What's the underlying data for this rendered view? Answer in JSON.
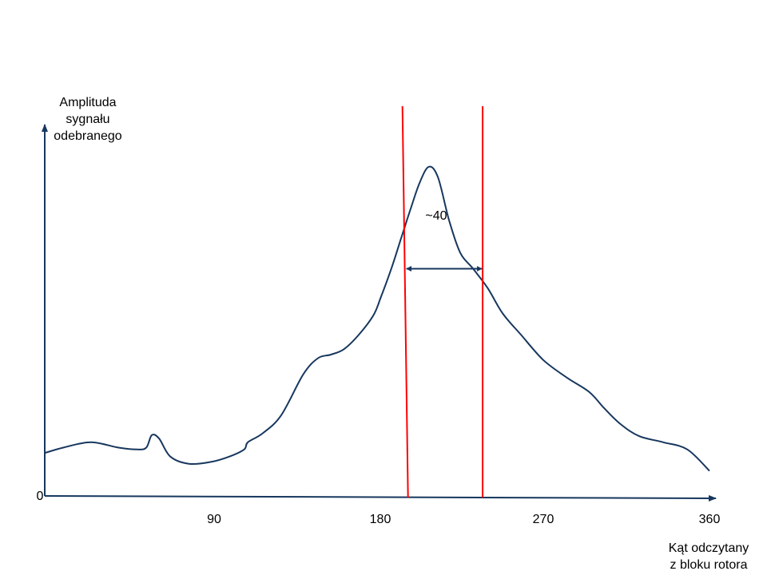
{
  "chart_data": {
    "type": "line",
    "xlabel": [
      "Kąt odczytany",
      "z bloku rotora"
    ],
    "ylabel": [
      "Amplituda",
      "sygnału",
      "odebranego"
    ],
    "y_origin_label": "0",
    "xlim": [
      0,
      360
    ],
    "ylim": [
      0,
      1
    ],
    "x_ticks": [
      90,
      180,
      270,
      360
    ],
    "x_tick_labels": [
      "90",
      "180",
      "270",
      "360"
    ],
    "series": [
      {
        "x": [
          0,
          10,
          25,
          40,
          50,
          55,
          58,
          62,
          68,
          78,
          90,
          100,
          108,
          110,
          118,
          128,
          140,
          148,
          155,
          162,
          170,
          178,
          182,
          188,
          193,
          198,
          203,
          208,
          213,
          219,
          225,
          232,
          240,
          248,
          258,
          270,
          283,
          295,
          303,
          312,
          322,
          335,
          348,
          360
        ],
        "y": [
          0.12,
          0.135,
          0.15,
          0.135,
          0.13,
          0.135,
          0.17,
          0.16,
          0.11,
          0.09,
          0.095,
          0.11,
          0.13,
          0.15,
          0.175,
          0.225,
          0.34,
          0.385,
          0.395,
          0.41,
          0.45,
          0.505,
          0.555,
          0.64,
          0.72,
          0.8,
          0.875,
          0.92,
          0.89,
          0.77,
          0.68,
          0.635,
          0.58,
          0.51,
          0.45,
          0.38,
          0.33,
          0.29,
          0.245,
          0.2,
          0.167,
          0.15,
          0.13,
          0.07
        ]
      }
    ],
    "vertical_lines": [
      195,
      235
    ],
    "annotation": {
      "text": "~40",
      "x_from": 195,
      "x_to": 235,
      "y": 0.635
    },
    "colors": {
      "curve": "#17375e",
      "axes": "#17375e",
      "markers": "#ff0000"
    },
    "grid": false,
    "legend": "none"
  }
}
